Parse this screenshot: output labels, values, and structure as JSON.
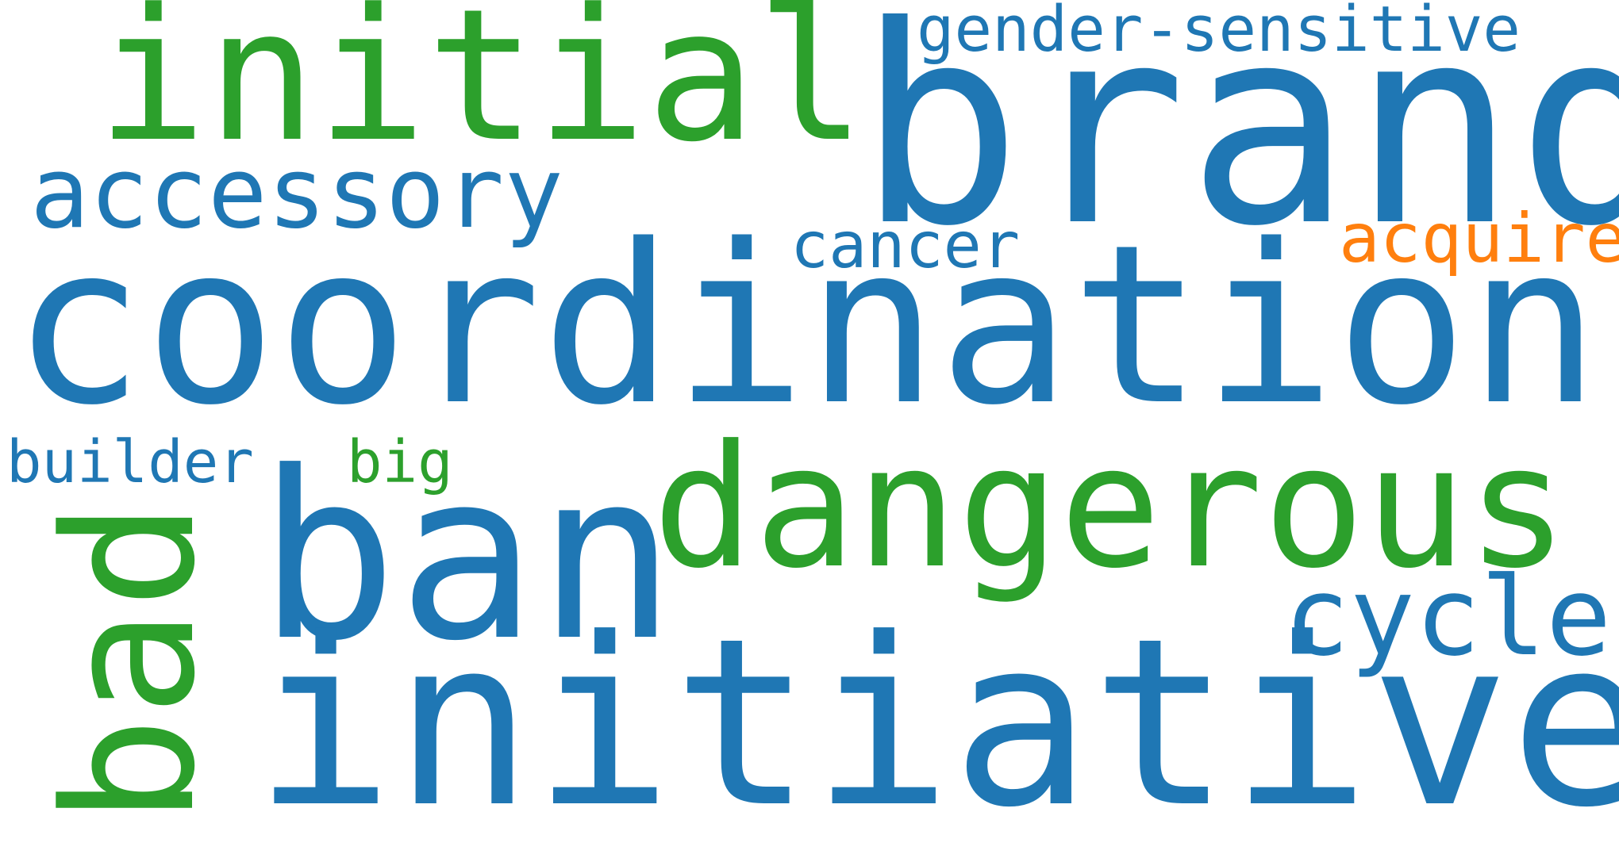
{
  "colors": {
    "blue": "#1f77b4",
    "green": "#2ca02c",
    "orange": "#ff7f0e",
    "background": "#ffffff"
  },
  "words": {
    "initial": "initial",
    "brand": "brand",
    "gender_sensitive": "gender-sensitive",
    "accessory": "accessory",
    "cancer": "cancer",
    "acquire": "acquire",
    "coordination": "coordination",
    "builder": "builder",
    "big": "big",
    "ban": "ban",
    "dangerous": "dangerous",
    "bad": "bad",
    "cycle": "cycle",
    "initiative": "initiative"
  }
}
